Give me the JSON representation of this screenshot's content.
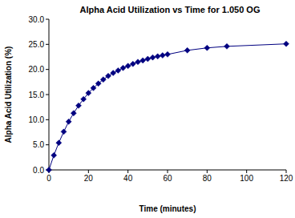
{
  "chart_data": {
    "type": "line",
    "title": "Alpha Acid Utilization vs Time for 1.050 OG",
    "x_label": "Time (minutes)",
    "y_label": "Alpha Acid Utilization (%)",
    "x": [
      0,
      2.5,
      5,
      7.5,
      10,
      12.5,
      15,
      17.5,
      20,
      22.5,
      25,
      27.5,
      30,
      32.5,
      35,
      37.5,
      40,
      42.5,
      45,
      47.5,
      50,
      52.5,
      55,
      57.5,
      60,
      70,
      80,
      90,
      120
    ],
    "values": [
      0.0,
      2.9,
      5.4,
      7.6,
      9.6,
      11.3,
      12.8,
      14.1,
      15.3,
      16.3,
      17.2,
      18.0,
      18.7,
      19.3,
      19.8,
      20.3,
      20.7,
      21.1,
      21.5,
      21.8,
      22.1,
      22.4,
      22.6,
      22.8,
      23.0,
      23.8,
      24.3,
      24.6,
      25.1
    ],
    "color": "#000080",
    "marker": "diamond",
    "line_style": "solid",
    "grid": false,
    "xlim": [
      0,
      120
    ],
    "xticks": [
      0,
      20,
      40,
      60,
      80,
      100,
      120
    ],
    "ylim": [
      0,
      30
    ],
    "yticks": [
      {
        "value": 0,
        "label": "0.0"
      },
      {
        "value": 5,
        "label": "5.0"
      },
      {
        "value": 10,
        "label": "10.0"
      },
      {
        "value": 15,
        "label": "15.0"
      },
      {
        "value": 20,
        "label": "20.0"
      },
      {
        "value": 25,
        "label": "25.0"
      },
      {
        "value": 30,
        "label": "30.0"
      }
    ]
  }
}
